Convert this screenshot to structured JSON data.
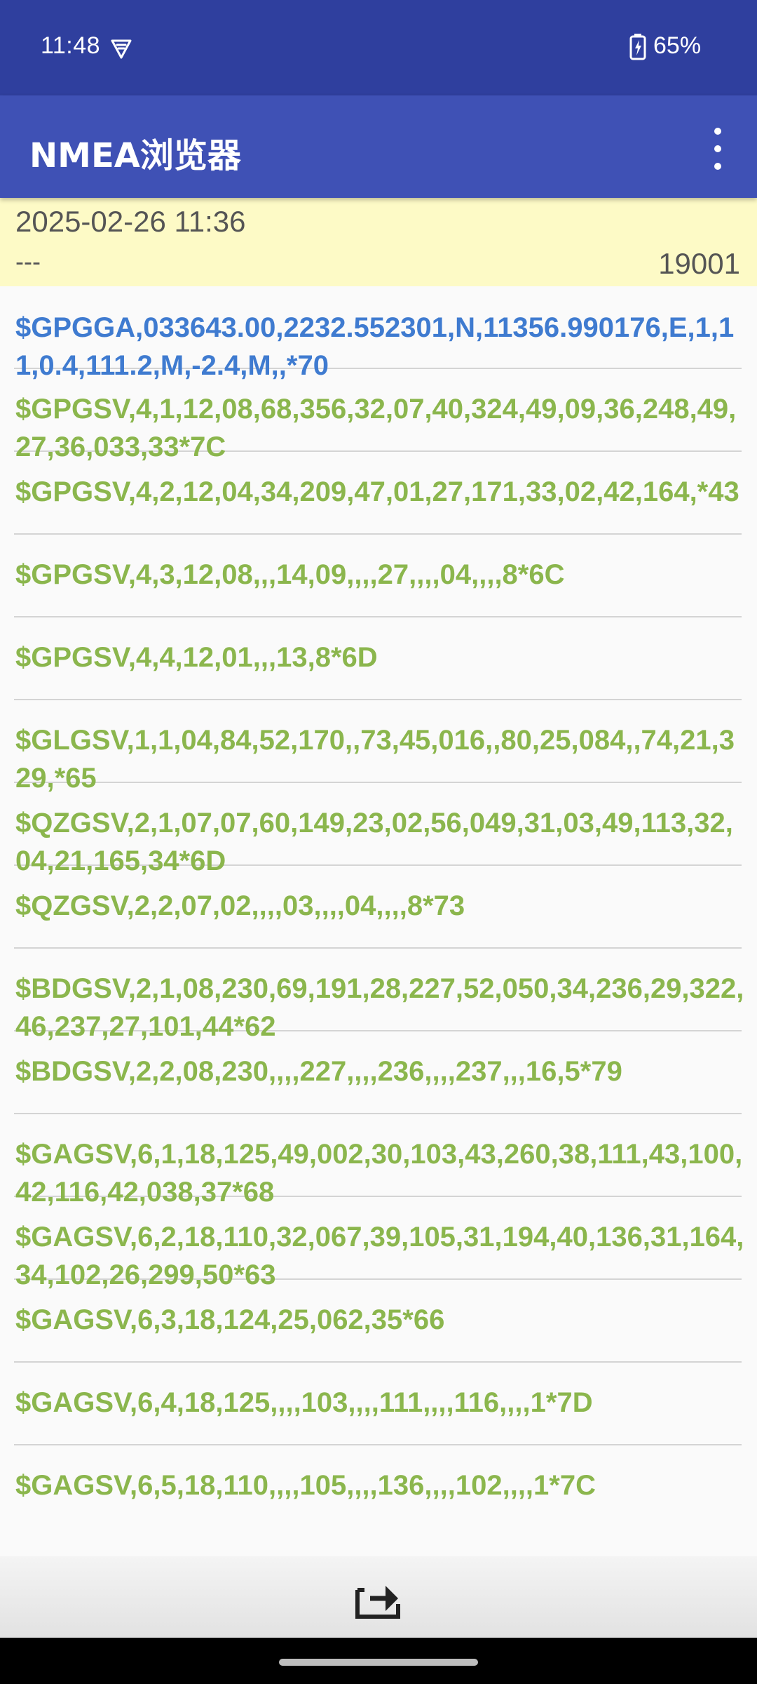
{
  "status_bar": {
    "time": "11:48",
    "battery": "65%"
  },
  "app_bar": {
    "title": "NMEA浏览器"
  },
  "info": {
    "datetime": "2025-02-26 11:36",
    "status": "---",
    "count": "19001"
  },
  "colors": {
    "status_bar": "#2f3f9e",
    "app_bar": "#3f51b5",
    "info_panel": "#fdfac6",
    "gga_text": "#3f7bd0",
    "gsv_text": "#8bb64d"
  },
  "sentences": [
    "$GPGGA,033643.00,2232.552301,N,11356.990176,E,1,11,0.4,111.2,M,-2.4,M,,*70",
    "$GPGSV,4,1,12,08,68,356,32,07,40,324,49,09,36,248,49,27,36,033,33*7C",
    "$GPGSV,4,2,12,04,34,209,47,01,27,171,33,02,42,164,*43",
    "$GPGSV,4,3,12,08,,,14,09,,,,27,,,,04,,,,8*6C",
    "$GPGSV,4,4,12,01,,,13,8*6D",
    "$GLGSV,1,1,04,84,52,170,,73,45,016,,80,25,084,,74,21,329,*65",
    "$QZGSV,2,1,07,07,60,149,23,02,56,049,31,03,49,113,32,04,21,165,34*6D",
    "$QZGSV,2,2,07,02,,,,03,,,,04,,,,8*73",
    "$BDGSV,2,1,08,230,69,191,28,227,52,050,34,236,29,322,46,237,27,101,44*62",
    "$BDGSV,2,2,08,230,,,,227,,,,236,,,,237,,,16,5*79",
    "$GAGSV,6,1,18,125,49,002,30,103,43,260,38,111,43,100,42,116,42,038,37*68",
    "$GAGSV,6,2,18,110,32,067,39,105,31,194,40,136,31,164,34,102,26,299,50*63",
    "$GAGSV,6,3,18,124,25,062,35*66",
    "$GAGSV,6,4,18,125,,,,103,,,,111,,,,116,,,,1*7D",
    "$GAGSV,6,5,18,110,,,,105,,,,136,,,,102,,,,1*7C"
  ],
  "icons": {
    "vpn": "vpn-key-icon",
    "battery": "battery-charging-icon",
    "menu": "more-vert-icon",
    "export": "export-icon"
  }
}
